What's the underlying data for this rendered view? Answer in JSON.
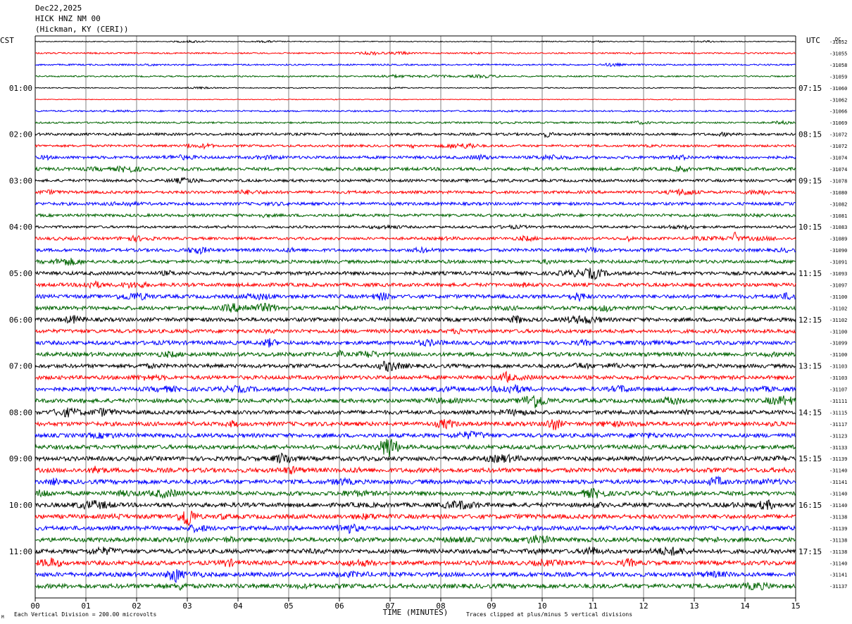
{
  "header": {
    "date": "Dec22,2025",
    "station": "HICK HNZ NM 00",
    "location": "(Hickman, KY (CERI))"
  },
  "left_zone_label": "CST",
  "right_zone_label": "UTC",
  "dc_label": "DC",
  "footer": {
    "scale_note": "Each Vertical Division =  200.00 microvolts",
    "clip_note": "Traces clipped at plus/minus 5 vertical divisions",
    "corner_mark": "M"
  },
  "colors": {
    "trace_cycle": [
      "#000000",
      "#ff0000",
      "#0000ff",
      "#006400"
    ],
    "grid": "#808080",
    "background": "#ffffff"
  },
  "chart_data": {
    "type": "line",
    "title": "HICK HNZ NM 00",
    "xlabel": "TIME (MINUTES)",
    "ylabel": "",
    "xlim": [
      0,
      15
    ],
    "x_ticks": [
      "00",
      "01",
      "02",
      "03",
      "04",
      "05",
      "06",
      "07",
      "08",
      "09",
      "10",
      "11",
      "12",
      "13",
      "14",
      "15"
    ],
    "left_hour_labels": [
      "01:00",
      "02:00",
      "03:00",
      "04:00",
      "05:00",
      "06:00",
      "07:00",
      "08:00",
      "09:00",
      "10:00",
      "11:00"
    ],
    "right_hour_labels": [
      "07:15",
      "08:15",
      "09:15",
      "10:15",
      "11:15",
      "12:15",
      "13:15",
      "14:15",
      "15:15",
      "16:15",
      "17:15"
    ],
    "trace_count": 48,
    "traces_per_hour": 4,
    "minutes_per_trace": 15,
    "dc_offsets": [
      -31052,
      -31055,
      -31058,
      -31059,
      -31060,
      -31062,
      -31066,
      -31069,
      -31072,
      -31072,
      -31074,
      -31074,
      -31078,
      -31080,
      -31082,
      -31081,
      -31083,
      -31089,
      -31090,
      -31091,
      -31093,
      -31097,
      -31100,
      -31102,
      -31102,
      -31100,
      -31099,
      -31100,
      -31103,
      -31103,
      -31107,
      -31111,
      -31115,
      -31117,
      -31123,
      -31133,
      -31139,
      -31140,
      -31141,
      -31140,
      -31140,
      -31138,
      -31139,
      -31138,
      -31138,
      -31140,
      -31141,
      -31137
    ],
    "noise_amplitude": [
      0.6,
      1.0,
      1.1,
      1.0,
      0.7,
      0.5,
      1.1,
      1.2,
      1.8,
      1.6,
      2.0,
      2.2,
      1.9,
      2.0,
      2.1,
      2.0,
      1.7,
      1.9,
      2.2,
      2.3,
      2.5,
      2.5,
      2.6,
      2.6,
      2.7,
      2.6,
      2.7,
      2.8,
      2.7,
      2.7,
      2.8,
      2.8,
      2.8,
      2.9,
      2.8,
      2.9,
      3.0,
      3.1,
      3.0,
      3.0,
      3.0,
      3.0,
      3.0,
      3.0,
      3.0,
      3.0,
      3.0,
      3.1
    ],
    "events": [
      {
        "trace": 17,
        "minute": 13.8,
        "amplitude_divisions": 3.5,
        "note": "spike"
      }
    ]
  }
}
